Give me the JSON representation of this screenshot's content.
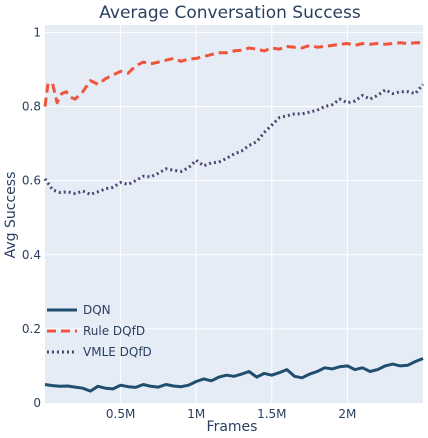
{
  "chart_data": {
    "type": "line",
    "title": "Average Conversation Success",
    "xlabel": "Frames",
    "ylabel": "Avg Success",
    "xlim": [
      0,
      2500000
    ],
    "ylim": [
      0,
      1.02
    ],
    "x_ticks": [
      {
        "value": 500000,
        "label": "0.5M"
      },
      {
        "value": 1000000,
        "label": "1M"
      },
      {
        "value": 1500000,
        "label": "1.5M"
      },
      {
        "value": 2000000,
        "label": "2M"
      }
    ],
    "y_ticks": [
      {
        "value": 0,
        "label": "0"
      },
      {
        "value": 0.2,
        "label": "0.2"
      },
      {
        "value": 0.4,
        "label": "0.4"
      },
      {
        "value": 0.6,
        "label": "0.6"
      },
      {
        "value": 0.8,
        "label": "0.8"
      },
      {
        "value": 1.0,
        "label": "1"
      }
    ],
    "grid": true,
    "legend_position": "bottom-left",
    "background_color": "#e5ecf6",
    "series": [
      {
        "name": "DQN",
        "color": "#1f4e6e",
        "dash": "solid",
        "x": [
          0,
          50000,
          100000,
          150000,
          200000,
          250000,
          300000,
          350000,
          400000,
          450000,
          500000,
          550000,
          600000,
          650000,
          700000,
          750000,
          800000,
          850000,
          900000,
          950000,
          1000000,
          1050000,
          1100000,
          1150000,
          1200000,
          1250000,
          1300000,
          1350000,
          1400000,
          1450000,
          1500000,
          1550000,
          1600000,
          1650000,
          1700000,
          1750000,
          1800000,
          1850000,
          1900000,
          1950000,
          2000000,
          2050000,
          2100000,
          2150000,
          2200000,
          2250000,
          2300000,
          2350000,
          2400000,
          2450000,
          2500000
        ],
        "values": [
          0.05,
          0.047,
          0.045,
          0.046,
          0.043,
          0.04,
          0.032,
          0.045,
          0.04,
          0.038,
          0.048,
          0.044,
          0.042,
          0.05,
          0.045,
          0.043,
          0.05,
          0.046,
          0.044,
          0.048,
          0.058,
          0.065,
          0.06,
          0.07,
          0.075,
          0.072,
          0.078,
          0.085,
          0.07,
          0.08,
          0.075,
          0.082,
          0.09,
          0.072,
          0.068,
          0.078,
          0.085,
          0.095,
          0.092,
          0.098,
          0.1,
          0.09,
          0.095,
          0.085,
          0.09,
          0.1,
          0.105,
          0.1,
          0.102,
          0.112,
          0.12
        ]
      },
      {
        "name": "Rule DQfD",
        "color": "#ef553b",
        "dash": "dash",
        "x": [
          0,
          20000,
          50000,
          80000,
          110000,
          140000,
          170000,
          200000,
          250000,
          300000,
          350000,
          400000,
          450000,
          500000,
          550000,
          600000,
          650000,
          700000,
          750000,
          800000,
          850000,
          900000,
          950000,
          1000000,
          1050000,
          1100000,
          1150000,
          1200000,
          1250000,
          1300000,
          1350000,
          1400000,
          1450000,
          1500000,
          1550000,
          1600000,
          1650000,
          1700000,
          1750000,
          1800000,
          1850000,
          1900000,
          1950000,
          2000000,
          2050000,
          2100000,
          2150000,
          2200000,
          2250000,
          2300000,
          2350000,
          2400000,
          2450000,
          2500000
        ],
        "values": [
          0.8,
          0.862,
          0.862,
          0.81,
          0.835,
          0.84,
          0.825,
          0.82,
          0.84,
          0.87,
          0.86,
          0.875,
          0.885,
          0.895,
          0.89,
          0.91,
          0.92,
          0.915,
          0.92,
          0.925,
          0.93,
          0.922,
          0.928,
          0.93,
          0.935,
          0.94,
          0.945,
          0.945,
          0.95,
          0.952,
          0.958,
          0.955,
          0.95,
          0.958,
          0.955,
          0.962,
          0.96,
          0.958,
          0.965,
          0.96,
          0.962,
          0.965,
          0.968,
          0.97,
          0.965,
          0.97,
          0.968,
          0.97,
          0.968,
          0.97,
          0.972,
          0.97,
          0.972,
          0.972
        ]
      },
      {
        "name": "VMLE DQfD",
        "color": "#4b4470",
        "dash": "dot",
        "x": [
          0,
          50000,
          100000,
          150000,
          200000,
          250000,
          300000,
          350000,
          400000,
          450000,
          500000,
          550000,
          600000,
          650000,
          700000,
          750000,
          800000,
          850000,
          900000,
          950000,
          1000000,
          1050000,
          1100000,
          1150000,
          1200000,
          1250000,
          1300000,
          1350000,
          1400000,
          1450000,
          1500000,
          1550000,
          1600000,
          1650000,
          1700000,
          1750000,
          1800000,
          1850000,
          1900000,
          1950000,
          2000000,
          2050000,
          2100000,
          2150000,
          2200000,
          2250000,
          2300000,
          2350000,
          2400000,
          2450000,
          2500000
        ],
        "values": [
          0.605,
          0.575,
          0.568,
          0.57,
          0.565,
          0.572,
          0.563,
          0.57,
          0.578,
          0.582,
          0.595,
          0.59,
          0.6,
          0.612,
          0.61,
          0.62,
          0.632,
          0.628,
          0.625,
          0.635,
          0.655,
          0.64,
          0.648,
          0.65,
          0.66,
          0.672,
          0.68,
          0.695,
          0.705,
          0.73,
          0.75,
          0.77,
          0.775,
          0.78,
          0.78,
          0.785,
          0.79,
          0.8,
          0.805,
          0.82,
          0.81,
          0.815,
          0.83,
          0.82,
          0.83,
          0.845,
          0.835,
          0.84,
          0.84,
          0.835,
          0.86
        ]
      }
    ]
  }
}
